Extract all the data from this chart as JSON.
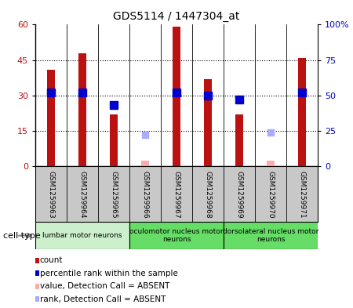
{
  "title": "GDS5114 / 1447304_at",
  "samples": [
    "GSM1259963",
    "GSM1259964",
    "GSM1259965",
    "GSM1259966",
    "GSM1259967",
    "GSM1259968",
    "GSM1259969",
    "GSM1259970",
    "GSM1259971"
  ],
  "count_values": [
    41,
    48,
    22,
    null,
    59,
    37,
    22,
    null,
    46
  ],
  "rank_values": [
    52,
    52,
    43,
    null,
    52,
    50,
    47,
    null,
    52
  ],
  "absent_value_values": [
    null,
    null,
    null,
    2.5,
    null,
    null,
    null,
    2.5,
    null
  ],
  "absent_rank_values": [
    null,
    null,
    null,
    22,
    null,
    null,
    null,
    24,
    null
  ],
  "count_color": "#bb1111",
  "rank_color": "#0000cc",
  "absent_value_color": "#ffaaaa",
  "absent_rank_color": "#aaaaff",
  "ylim_left": [
    0,
    60
  ],
  "ylim_right": [
    0,
    100
  ],
  "yticks_left": [
    0,
    15,
    30,
    45,
    60
  ],
  "yticks_right": [
    0,
    25,
    50,
    75,
    100
  ],
  "ytick_labels_left": [
    "0",
    "15",
    "30",
    "45",
    "60"
  ],
  "ytick_labels_right": [
    "0",
    "25",
    "50",
    "75",
    "100%"
  ],
  "cell_groups": [
    {
      "label": "lumbar motor neurons",
      "samples": [
        0,
        1,
        2
      ],
      "color": "#ccf0cc"
    },
    {
      "label": "oculomotor nucleus motor\nneurons",
      "samples": [
        3,
        4,
        5
      ],
      "color": "#66dd66"
    },
    {
      "label": "dorsolateral nucleus motor\nneurons",
      "samples": [
        6,
        7,
        8
      ],
      "color": "#66dd66"
    }
  ],
  "cell_type_label": "cell type",
  "legend_items": [
    {
      "color": "#bb1111",
      "label": "count"
    },
    {
      "color": "#0000cc",
      "label": "percentile rank within the sample"
    },
    {
      "color": "#ffaaaa",
      "label": "value, Detection Call = ABSENT"
    },
    {
      "color": "#aaaaff",
      "label": "rank, Detection Call = ABSENT"
    }
  ],
  "grid_yticks": [
    15,
    30,
    45
  ],
  "bar_width": 0.25,
  "marker_size": 7,
  "bg_color": "#c8c8c8",
  "plot_bg": "#ffffff"
}
